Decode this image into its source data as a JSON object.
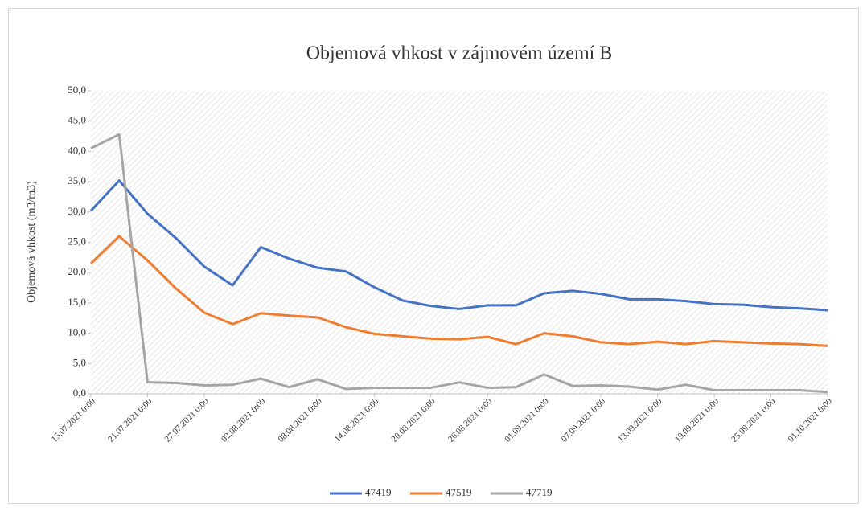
{
  "chart_data": {
    "type": "line",
    "title": "Objemová vhkost v zájmovém území B",
    "y_label": "Objemová vhkost (m3/m3)",
    "categories": [
      "15.07.2021 0:00",
      null,
      "21.07.2021 0:00",
      null,
      "27.07.2021 0:00",
      null,
      "02.08.2021 0:00",
      null,
      "08.08.2021 0:00",
      null,
      "14.08.2021 0:00",
      null,
      "20.08.2021 0:00",
      null,
      "26.08.2021 0:00",
      null,
      "01.09.2021 0:00",
      null,
      "07.09.2021 0:00",
      null,
      "13.09.2021 0:00",
      null,
      "19.09.2021 0:00",
      null,
      "25.09.2021 0:00",
      null,
      "01.10.2021 0:00"
    ],
    "series": [
      {
        "name": "47419",
        "color": "#4472c4",
        "values": [
          30.2,
          35.2,
          29.7,
          25.7,
          21.0,
          17.9,
          24.2,
          22.3,
          20.8,
          20.2,
          17.6,
          15.4,
          14.5,
          14.0,
          14.6,
          14.6,
          16.6,
          17.0,
          16.5,
          15.6,
          15.6,
          15.3,
          14.8,
          14.7,
          14.3,
          14.1,
          13.8
        ]
      },
      {
        "name": "47519",
        "color": "#ed7d31",
        "values": [
          21.5,
          26.0,
          22.0,
          17.4,
          13.4,
          11.5,
          13.3,
          12.9,
          12.6,
          11.0,
          9.9,
          9.5,
          9.1,
          9.0,
          9.4,
          8.2,
          10.0,
          9.5,
          8.5,
          8.2,
          8.6,
          8.2,
          8.7,
          8.5,
          8.3,
          8.2,
          7.9
        ]
      },
      {
        "name": "47719",
        "color": "#a5a5a5",
        "values": [
          40.5,
          42.8,
          1.9,
          1.8,
          1.4,
          1.5,
          2.5,
          1.1,
          2.4,
          0.8,
          1.0,
          1.0,
          1.0,
          1.9,
          1.0,
          1.1,
          3.2,
          1.3,
          1.4,
          1.2,
          0.7,
          1.5,
          0.6,
          0.6,
          0.6,
          0.6,
          0.3
        ]
      }
    ],
    "ylim": [
      0,
      50
    ],
    "yticks": [
      {
        "value": 0,
        "label": "0,0"
      },
      {
        "value": 5,
        "label": "5,0"
      },
      {
        "value": 10,
        "label": "10,0"
      },
      {
        "value": 15,
        "label": "15,0"
      },
      {
        "value": 20,
        "label": "20,0"
      },
      {
        "value": 25,
        "label": "25,0"
      },
      {
        "value": 30,
        "label": "30,0"
      },
      {
        "value": 35,
        "label": "35,0"
      },
      {
        "value": 40,
        "label": "40,0"
      },
      {
        "value": 45,
        "label": "45,0"
      },
      {
        "value": 50,
        "label": "50,0"
      }
    ],
    "legend": "bottom"
  }
}
